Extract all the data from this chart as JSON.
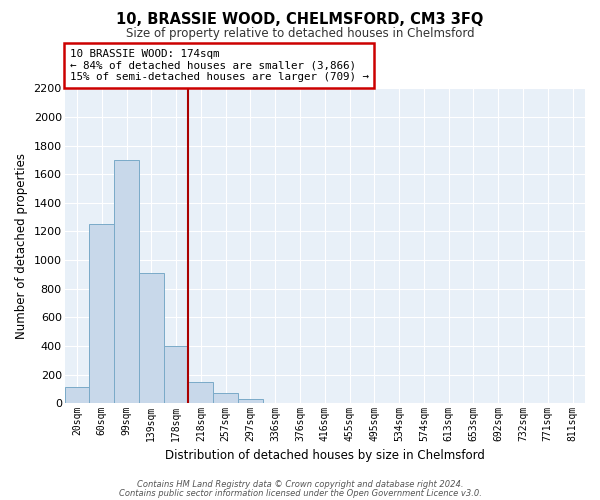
{
  "title": "10, BRASSIE WOOD, CHELMSFORD, CM3 3FQ",
  "subtitle": "Size of property relative to detached houses in Chelmsford",
  "xlabel": "Distribution of detached houses by size in Chelmsford",
  "ylabel": "Number of detached properties",
  "bar_labels": [
    "20sqm",
    "60sqm",
    "99sqm",
    "139sqm",
    "178sqm",
    "218sqm",
    "257sqm",
    "297sqm",
    "336sqm",
    "376sqm",
    "416sqm",
    "455sqm",
    "495sqm",
    "534sqm",
    "574sqm",
    "613sqm",
    "653sqm",
    "692sqm",
    "732sqm",
    "771sqm",
    "811sqm"
  ],
  "bar_values": [
    115,
    1250,
    1700,
    910,
    400,
    150,
    70,
    30,
    0,
    0,
    0,
    0,
    0,
    0,
    0,
    0,
    0,
    0,
    0,
    0,
    0
  ],
  "bar_color": "#c8d8ea",
  "bar_edge_color": "#7aaac8",
  "vline_x_index": 4,
  "vline_color": "#aa0000",
  "ylim": [
    0,
    2200
  ],
  "yticks": [
    0,
    200,
    400,
    600,
    800,
    1000,
    1200,
    1400,
    1600,
    1800,
    2000,
    2200
  ],
  "annotation_title": "10 BRASSIE WOOD: 174sqm",
  "annotation_line1": "← 84% of detached houses are smaller (3,866)",
  "annotation_line2": "15% of semi-detached houses are larger (709) →",
  "annotation_box_color": "#cc0000",
  "fig_bg_color": "#ffffff",
  "plot_bg_color": "#e8f0f8",
  "grid_color": "#ffffff",
  "footer1": "Contains HM Land Registry data © Crown copyright and database right 2024.",
  "footer2": "Contains public sector information licensed under the Open Government Licence v3.0."
}
